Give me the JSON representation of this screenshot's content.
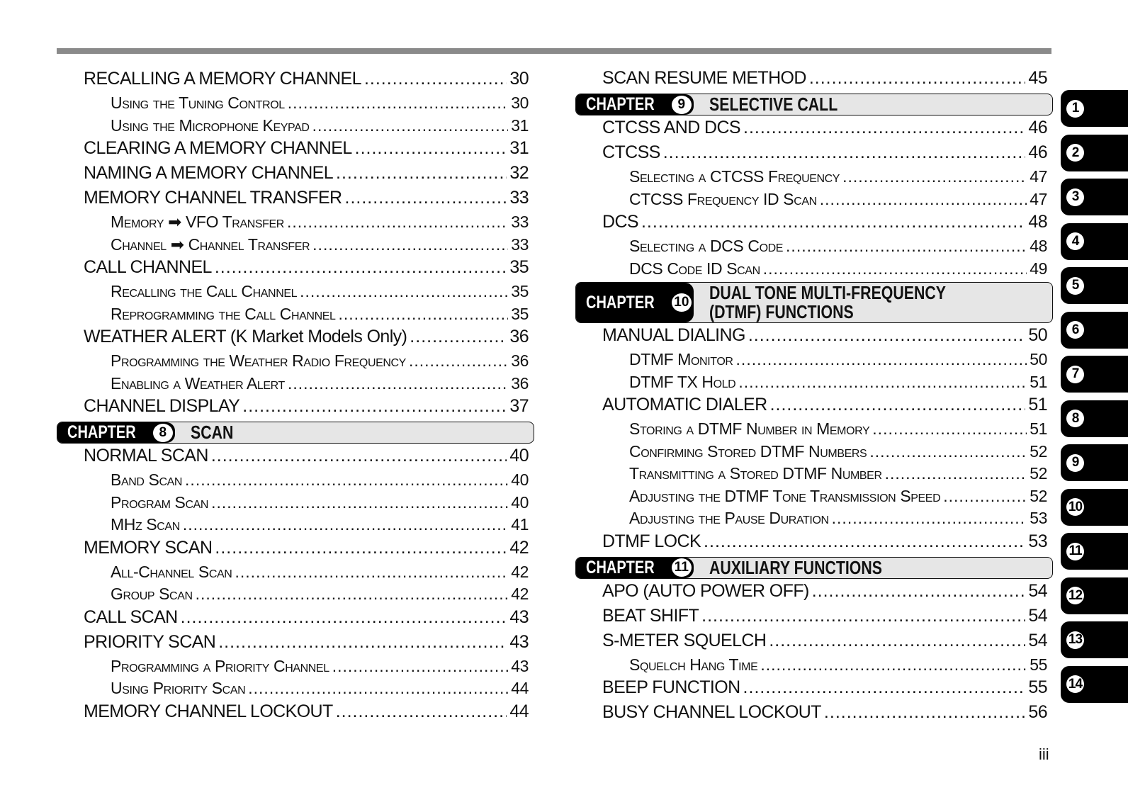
{
  "left_column": [
    {
      "type": "main",
      "text": "RECALLING A MEMORY CHANNEL",
      "page": "30"
    },
    {
      "type": "sub",
      "text": "Using the Tuning Control",
      "page": "30"
    },
    {
      "type": "sub",
      "text": "Using the Microphone Keypad",
      "page": "31"
    },
    {
      "type": "main",
      "text": "CLEARING A MEMORY CHANNEL",
      "page": "31"
    },
    {
      "type": "main",
      "text": "NAMING A MEMORY CHANNEL",
      "page": "32"
    },
    {
      "type": "main",
      "text": "MEMORY CHANNEL TRANSFER",
      "page": "33"
    },
    {
      "type": "sub",
      "text": "Memory ➡ VFO Transfer",
      "page": "33"
    },
    {
      "type": "sub",
      "text": "Channel ➡ Channel Transfer",
      "page": "33"
    },
    {
      "type": "main",
      "text": "CALL CHANNEL",
      "page": "35"
    },
    {
      "type": "sub",
      "text": "Recalling the Call Channel",
      "page": "35"
    },
    {
      "type": "sub",
      "text": "Reprogramming the Call Channel",
      "page": "35"
    },
    {
      "type": "main",
      "text": "WEATHER ALERT (K Market Models Only)",
      "page": "36"
    },
    {
      "type": "sub",
      "text": "Programming the Weather Radio Frequency",
      "page": "36"
    },
    {
      "type": "sub",
      "text": "Enabling a Weather Alert",
      "page": "36"
    },
    {
      "type": "main",
      "text": "CHANNEL DISPLAY",
      "page": "37"
    },
    {
      "type": "chapter",
      "label": "CHAPTER",
      "number": "8",
      "title": "SCAN"
    },
    {
      "type": "main",
      "text": "NORMAL SCAN",
      "page": "40"
    },
    {
      "type": "sub",
      "text": "Band Scan",
      "page": "40"
    },
    {
      "type": "sub",
      "text": "Program Scan",
      "page": "40"
    },
    {
      "type": "sub",
      "text": "MHz Scan",
      "page": "41"
    },
    {
      "type": "main",
      "text": "MEMORY SCAN",
      "page": "42"
    },
    {
      "type": "sub",
      "text": "All-Channel Scan",
      "page": "42"
    },
    {
      "type": "sub",
      "text": "Group Scan",
      "page": "42"
    },
    {
      "type": "main",
      "text": "CALL SCAN",
      "page": "43"
    },
    {
      "type": "main",
      "text": "PRIORITY SCAN",
      "page": "43"
    },
    {
      "type": "sub",
      "text": "Programming a Priority Channel",
      "page": "43"
    },
    {
      "type": "sub",
      "text": "Using Priority Scan",
      "page": "44"
    },
    {
      "type": "main",
      "text": "MEMORY CHANNEL LOCKOUT",
      "page": "44"
    }
  ],
  "right_column": [
    {
      "type": "main",
      "text": "SCAN RESUME METHOD",
      "page": "45"
    },
    {
      "type": "chapter",
      "label": "CHAPTER",
      "number": "9",
      "title": "SELECTIVE CALL"
    },
    {
      "type": "main",
      "text": "CTCSS AND DCS",
      "page": "46"
    },
    {
      "type": "main",
      "text": "CTCSS",
      "page": "46"
    },
    {
      "type": "sub",
      "text": "Selecting a CTCSS Frequency",
      "page": "47"
    },
    {
      "type": "sub",
      "text": "CTCSS Frequency ID Scan",
      "page": "47"
    },
    {
      "type": "main",
      "text": "DCS",
      "page": "48"
    },
    {
      "type": "sub",
      "text": "Selecting a DCS Code",
      "page": "48"
    },
    {
      "type": "sub",
      "text": "DCS Code ID Scan",
      "page": "49"
    },
    {
      "type": "chapter",
      "label": "CHAPTER",
      "number": "10",
      "title": "DUAL TONE MULTI-FREQUENCY\n(DTMF) FUNCTIONS"
    },
    {
      "type": "main",
      "text": "MANUAL DIALING",
      "page": "50"
    },
    {
      "type": "sub",
      "text": "DTMF Monitor",
      "page": "50"
    },
    {
      "type": "sub",
      "text": "DTMF TX Hold",
      "page": "51"
    },
    {
      "type": "main",
      "text": "AUTOMATIC DIALER",
      "page": "51"
    },
    {
      "type": "sub",
      "text": "Storing a DTMF Number in Memory",
      "page": "51"
    },
    {
      "type": "sub",
      "text": "Confirming Stored DTMF Numbers",
      "page": "52"
    },
    {
      "type": "sub",
      "text": "Transmitting a Stored DTMF Number",
      "page": "52"
    },
    {
      "type": "sub",
      "text": "Adjusting the DTMF Tone Transmission Speed",
      "page": "52"
    },
    {
      "type": "sub",
      "text": "Adjusting the Pause Duration",
      "page": "53"
    },
    {
      "type": "main",
      "text": "DTMF LOCK",
      "page": "53"
    },
    {
      "type": "chapter",
      "label": "CHAPTER",
      "number": "11",
      "title": "AUXILIARY FUNCTIONS"
    },
    {
      "type": "main",
      "text": "APO (AUTO POWER OFF)",
      "page": "54"
    },
    {
      "type": "main",
      "text": "BEAT SHIFT",
      "page": "54"
    },
    {
      "type": "main",
      "text": "S-METER SQUELCH",
      "page": "54"
    },
    {
      "type": "sub",
      "text": "Squelch Hang Time",
      "page": "55"
    },
    {
      "type": "main",
      "text": "BEEP FUNCTION",
      "page": "55"
    },
    {
      "type": "main",
      "text": "BUSY CHANNEL LOCKOUT",
      "page": "56"
    }
  ],
  "chapter_tabs": [
    "1",
    "2",
    "3",
    "4",
    "5",
    "6",
    "7",
    "8",
    "9",
    "10",
    "11",
    "12",
    "13",
    "14"
  ],
  "page_number": "iii"
}
